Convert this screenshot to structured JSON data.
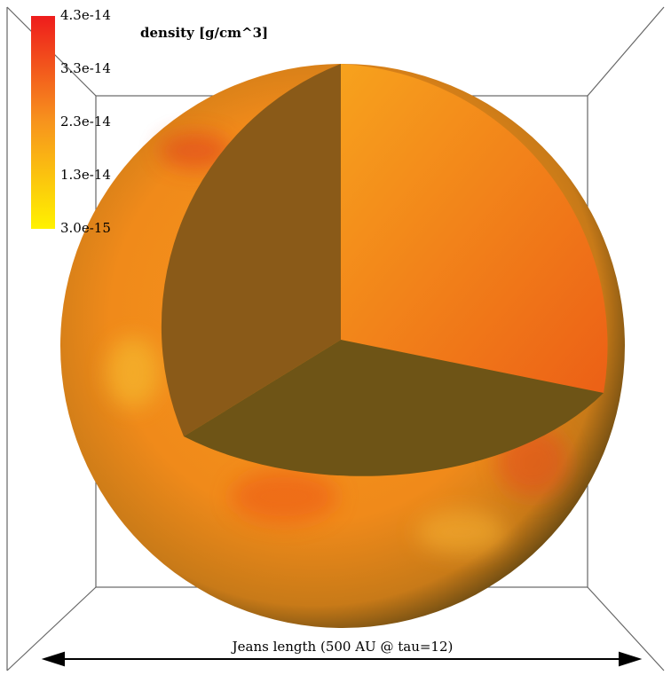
{
  "title": "density [g/cm^3]",
  "colorbar": {
    "ticks": [
      "4.3e-14",
      "3.3e-14",
      "2.3e-14",
      "1.3e-14",
      "3.0e-15"
    ]
  },
  "annotation": "Jeans length (500 AU @ tau=12)"
}
